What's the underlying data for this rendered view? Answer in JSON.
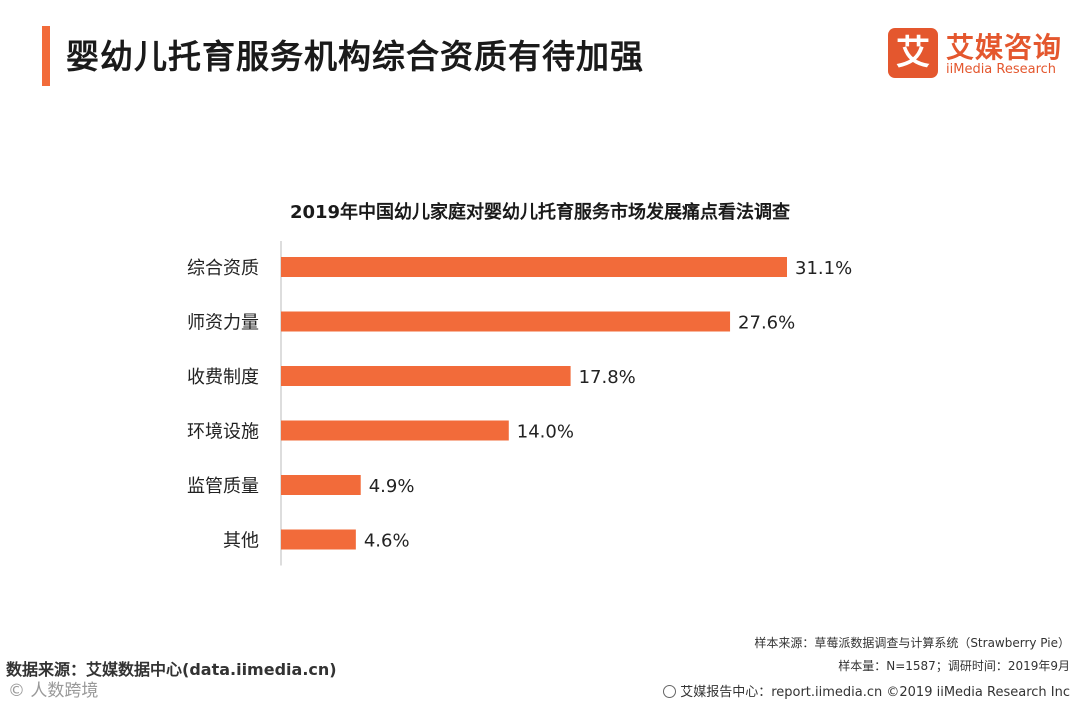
{
  "header": {
    "title": "婴幼儿托育服务机构综合资质有待加强",
    "accent_color": "#f26b3a"
  },
  "logo": {
    "mark": "艾",
    "name_cn": "艾媒咨询",
    "name_en": "iiMedia Research",
    "color": "#e4572e"
  },
  "chart_data": {
    "type": "bar",
    "orientation": "horizontal",
    "title": "2019年中国幼儿家庭对婴幼儿托育服务市场发展痛点看法调查",
    "categories": [
      "综合资质",
      "师资力量",
      "收费制度",
      "环境设施",
      "监管质量",
      "其他"
    ],
    "values": [
      31.1,
      27.6,
      17.8,
      14.0,
      4.9,
      4.6
    ],
    "value_labels": [
      "31.1%",
      "27.6%",
      "17.8%",
      "14.0%",
      "4.9%",
      "4.6%"
    ],
    "unit": "%",
    "xlim": [
      0,
      31.1
    ],
    "bar_color": "#f26b3a",
    "grid": false,
    "legend": "none"
  },
  "notes": {
    "sample_source": "样本来源：草莓派数据调查与计算系统（Strawberry Pie）",
    "sample_size": "样本量：N=1587；调研时间：2019年9月",
    "data_source": "数据来源：艾媒数据中心(data.iimedia.cn)",
    "footer": "艾媒报告中心：report.iimedia.cn   ©2019  iiMedia Research  Inc",
    "watermark": "© 人数跨境"
  }
}
